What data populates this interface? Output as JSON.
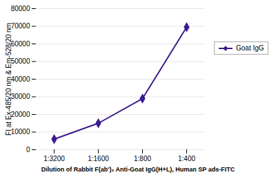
{
  "chart_data": {
    "type": "line",
    "categories": [
      "1:3200",
      "1:1600",
      "1:800",
      "1:400"
    ],
    "series": [
      {
        "name": "Goat IgG",
        "color": "#3d1a8e",
        "marker": "diamond",
        "values": [
          6000,
          15000,
          29000,
          69500
        ]
      }
    ],
    "xlabel": "Dilution of Rabbit F(ab')₂ Anti-Goat IgG(H+L), Human SP ads-FITC",
    "ylabel": "FI at Ex-485/20 nm & Em-528/20 nm",
    "ylim": [
      0,
      80000
    ],
    "yticks": [
      0,
      10000,
      20000,
      30000,
      40000,
      50000,
      60000,
      70000,
      80000
    ],
    "grid": true,
    "legend": "right"
  }
}
